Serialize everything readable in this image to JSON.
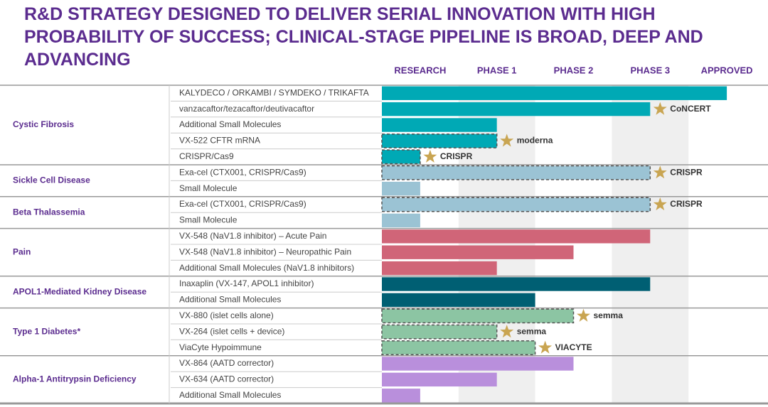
{
  "chart_data": {
    "type": "pipeline",
    "title": "R&D STRATEGY DESIGNED TO DELIVER SERIAL INNOVATION WITH HIGH PROBABILITY OF SUCCESS; CLINICAL-STAGE PIPELINE IS BROAD, DEEP AND ADVANCING",
    "stages": [
      "RESEARCH",
      "PHASE 1",
      "PHASE 2",
      "PHASE 3",
      "APPROVED"
    ],
    "xlim": [
      0,
      5
    ],
    "groups": [
      {
        "name": "Cystic Fibrosis",
        "color": "#00a9b5",
        "programs": [
          {
            "name": "KALYDECO / ORKAMBI / SYMDEKO / TRIKAFTA",
            "value": 4.5
          },
          {
            "name": "vanzacaftor/tezacaftor/deutivacaftor",
            "value": 3.5,
            "partner": "CoNCERT"
          },
          {
            "name": "Additional Small Molecules",
            "value": 1.5
          },
          {
            "name": "VX-522 CFTR mRNA",
            "value": 1.5,
            "partnered": true,
            "partner": "moderna"
          },
          {
            "name": "CRISPR/Cas9",
            "value": 0.5,
            "partnered": true,
            "partner": "CRISPR"
          }
        ]
      },
      {
        "name": "Sickle Cell Disease",
        "color": "#9bc3d4",
        "programs": [
          {
            "name": "Exa-cel (CTX001, CRISPR/Cas9)",
            "value": 3.5,
            "partnered": true,
            "partner": "CRISPR"
          },
          {
            "name": "Small Molecule",
            "value": 0.5
          }
        ]
      },
      {
        "name": "Beta Thalassemia",
        "color": "#9bc3d4",
        "programs": [
          {
            "name": "Exa-cel (CTX001, CRISPR/Cas9)",
            "value": 3.5,
            "partnered": true,
            "partner": "CRISPR"
          },
          {
            "name": "Small Molecule",
            "value": 0.5
          }
        ]
      },
      {
        "name": "Pain",
        "color": "#d06578",
        "programs": [
          {
            "name": "VX-548 (NaV1.8 inhibitor) – Acute Pain",
            "value": 3.5
          },
          {
            "name": "VX-548 (NaV1.8 inhibitor) – Neuropathic Pain",
            "value": 2.5
          },
          {
            "name": "Additional Small Molecules (NaV1.8 inhibitors)",
            "value": 1.5
          }
        ]
      },
      {
        "name": "APOL1-Mediated Kidney Disease",
        "color": "#005f73",
        "programs": [
          {
            "name": "Inaxaplin (VX-147, APOL1 inhibitor)",
            "value": 3.5
          },
          {
            "name": "Additional Small Molecules",
            "value": 2.0
          }
        ]
      },
      {
        "name": "Type 1 Diabetes*",
        "color": "#8cc5a3",
        "programs": [
          {
            "name": "VX-880 (islet cells alone)",
            "value": 2.5,
            "partnered": true,
            "partner": "semma"
          },
          {
            "name": "VX-264 (islet cells + device)",
            "value": 1.5,
            "partnered": true,
            "partner": "semma"
          },
          {
            "name": "ViaCyte Hypoimmune",
            "value": 2.0,
            "partnered": true,
            "partner": "VIACYTE"
          }
        ]
      },
      {
        "name": "Alpha-1 Antitrypsin Deficiency",
        "color": "#b98fdc",
        "programs": [
          {
            "name": "VX-864 (AATD corrector)",
            "value": 2.5
          },
          {
            "name": "VX-634 (AATD corrector)",
            "value": 1.5
          },
          {
            "name": "Additional Small Molecules",
            "value": 0.5
          }
        ]
      }
    ]
  }
}
